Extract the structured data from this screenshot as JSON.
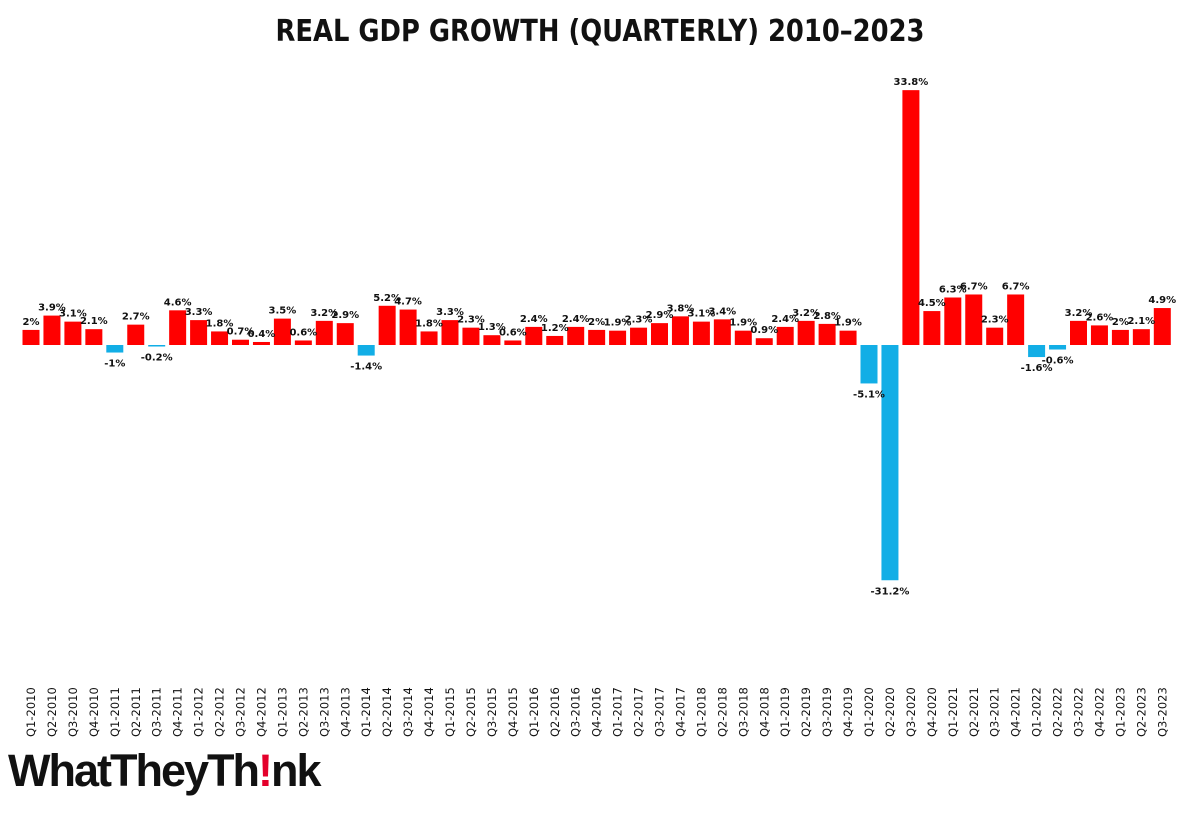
{
  "chart_data": {
    "type": "bar",
    "title": "REAL GDP GROWTH (QUARTERLY) 2010–2023",
    "xlabel": "",
    "ylabel": "",
    "value_suffix": "%",
    "colors": {
      "positive": "#ff0000",
      "negative": "#12aee6"
    },
    "categories": [
      "Q1-2010",
      "Q2-2010",
      "Q3-2010",
      "Q4-2010",
      "Q1-2011",
      "Q2-2011",
      "Q3-2011",
      "Q4-2011",
      "Q1-2012",
      "Q2-2012",
      "Q3-2012",
      "Q4-2012",
      "Q1-2013",
      "Q2-2013",
      "Q3-2013",
      "Q4-2013",
      "Q1-2014",
      "Q2-2014",
      "Q3-2014",
      "Q4-2014",
      "Q1-2015",
      "Q2-2015",
      "Q3-2015",
      "Q4-2015",
      "Q1-2016",
      "Q2-2016",
      "Q3-2016",
      "Q4-2016",
      "Q1-2017",
      "Q2-2017",
      "Q3-2017",
      "Q4-2017",
      "Q1-2018",
      "Q2-2018",
      "Q3-2018",
      "Q4-2018",
      "Q1-2019",
      "Q2-2019",
      "Q3-2019",
      "Q4-2019",
      "Q1-2020",
      "Q2-2020",
      "Q3-2020",
      "Q4-2020",
      "Q1-2021",
      "Q2-2021",
      "Q3-2021",
      "Q4-2021",
      "Q1-2022",
      "Q2-2022",
      "Q3-2022",
      "Q4-2022",
      "Q1-2023",
      "Q2-2023",
      "Q3-2023"
    ],
    "values": [
      2,
      3.9,
      3.1,
      2.1,
      -1,
      2.7,
      -0.2,
      4.6,
      3.3,
      1.8,
      0.7,
      0.4,
      3.5,
      0.6,
      3.2,
      2.9,
      -1.4,
      5.2,
      4.7,
      1.8,
      3.3,
      2.3,
      1.3,
      0.6,
      2.4,
      1.2,
      2.4,
      2,
      1.9,
      2.3,
      2.9,
      3.8,
      3.1,
      3.4,
      1.9,
      0.9,
      2.4,
      3.2,
      2.8,
      1.9,
      -5.1,
      -31.2,
      33.8,
      4.5,
      6.3,
      6.7,
      2.3,
      6.7,
      -1.6,
      -0.6,
      3.2,
      2.6,
      2,
      2.1,
      4.9
    ],
    "ylim": [
      -31.2,
      33.8
    ],
    "grid": false,
    "legend": "none"
  },
  "logo": {
    "text_before": "WhatTheyTh",
    "accent": "!",
    "text_after": "nk"
  }
}
